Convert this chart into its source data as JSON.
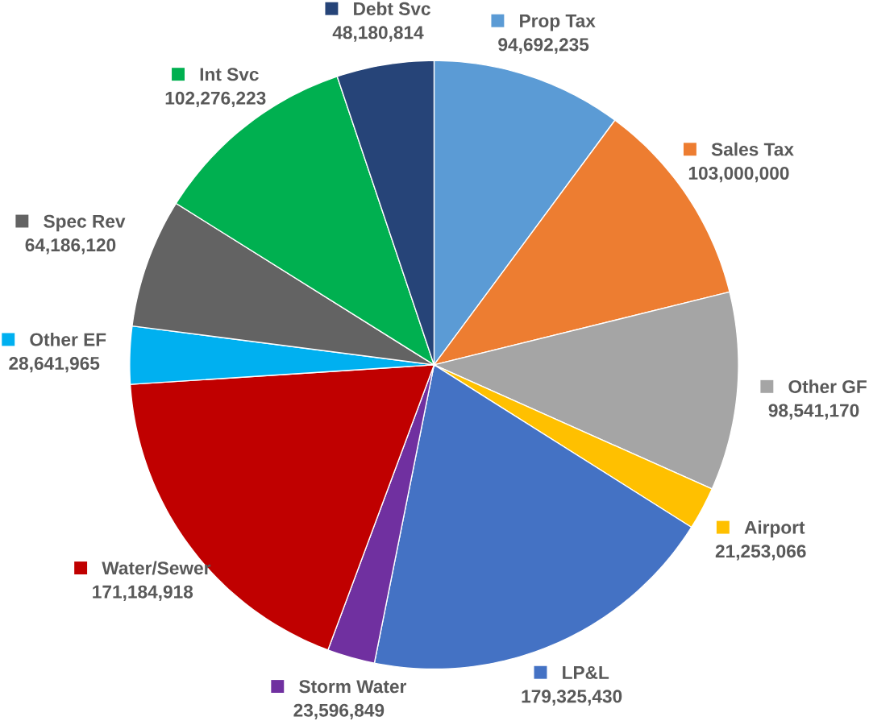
{
  "chart_data": {
    "type": "pie",
    "categories": [
      "Prop Tax",
      "Sales Tax",
      "Other GF",
      "Airport",
      "LP&L",
      "Storm Water",
      "Water/Sewer",
      "Other EF",
      "Spec Rev",
      "Int Svc",
      "Debt Svc"
    ],
    "values": [
      94692235,
      103000000,
      98541170,
      21253066,
      179325430,
      23596849,
      171184918,
      28641965,
      64186120,
      102276223,
      48180814
    ],
    "value_labels": [
      "94,692,235",
      "103,000,000",
      "98,541,170",
      "21,253,066",
      "179,325,430",
      "23,596,849",
      "171,184,918",
      "28,641,965",
      "64,186,120",
      "102,276,223",
      "48,180,814"
    ],
    "colors": [
      "#5b9bd5",
      "#ed7d31",
      "#a5a5a5",
      "#ffc000",
      "#4472c4",
      "#7030a0",
      "#c00000",
      "#00b0f0",
      "#636363",
      "#00b050",
      "#264478"
    ],
    "legend": "right"
  }
}
